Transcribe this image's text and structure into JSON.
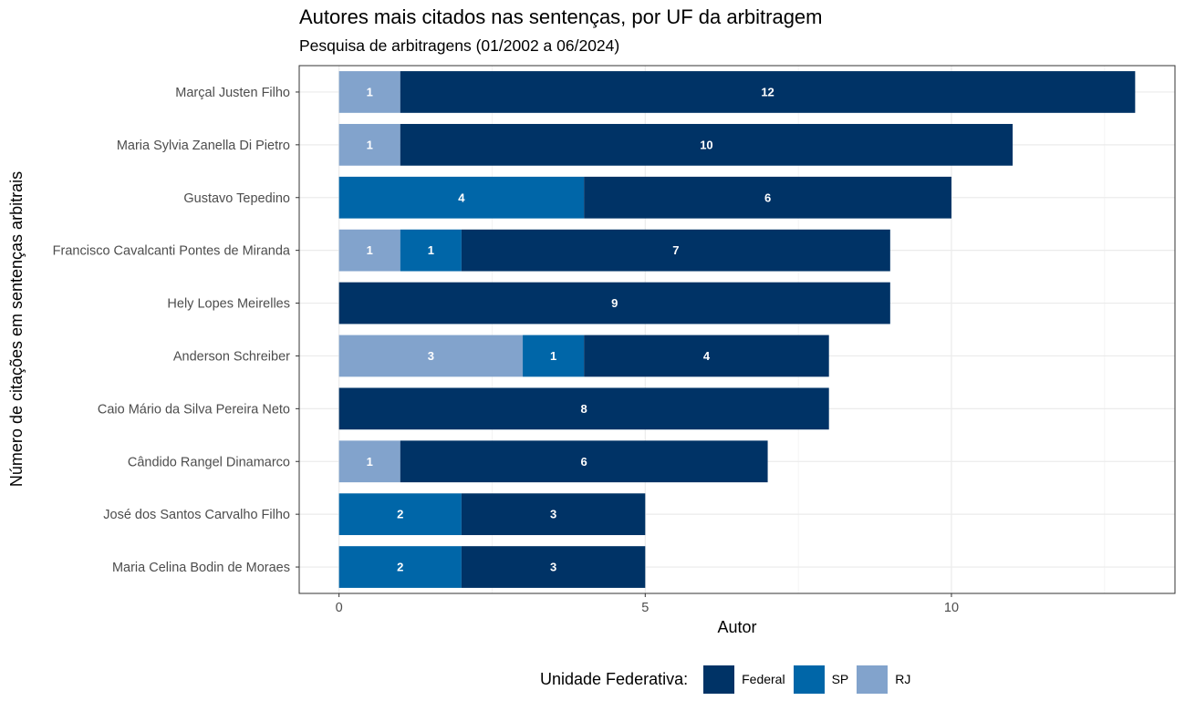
{
  "chart_data": {
    "type": "bar",
    "orientation": "horizontal",
    "stacked": true,
    "title": "Autores mais citados nas sentenças, por UF da arbitragem",
    "subtitle": "Pesquisa de arbitragens (01/2002 a 06/2024)",
    "xlabel": "Autor",
    "ylabel": "Número de citações em sentenças arbitrais",
    "xlim": [
      -0.65,
      13.65
    ],
    "xticks": [
      0,
      5,
      10
    ],
    "grid": true,
    "legend_title": "Unidade Federativa:",
    "legend_position": "bottom",
    "categories": [
      "Marçal Justen Filho",
      "Maria Sylvia Zanella Di Pietro",
      "Gustavo Tepedino",
      "Francisco Cavalcanti Pontes de Miranda",
      "Hely Lopes Meirelles",
      "Anderson Schreiber",
      "Caio Mário da Silva Pereira Neto",
      "Cândido Rangel Dinamarco",
      "José dos Santos Carvalho Filho",
      "Maria Celina Bodin de Moraes"
    ],
    "stack_order": [
      "RJ",
      "SP",
      "Federal"
    ],
    "series": [
      {
        "name": "Federal",
        "color": "#003366",
        "values": [
          12,
          10,
          6,
          7,
          9,
          4,
          8,
          6,
          3,
          3
        ]
      },
      {
        "name": "SP",
        "color": "#0066A8",
        "values": [
          0,
          0,
          4,
          1,
          0,
          1,
          0,
          0,
          2,
          2
        ]
      },
      {
        "name": "RJ",
        "color": "#82A3CC",
        "values": [
          1,
          1,
          0,
          1,
          0,
          3,
          0,
          1,
          0,
          0
        ]
      }
    ]
  }
}
